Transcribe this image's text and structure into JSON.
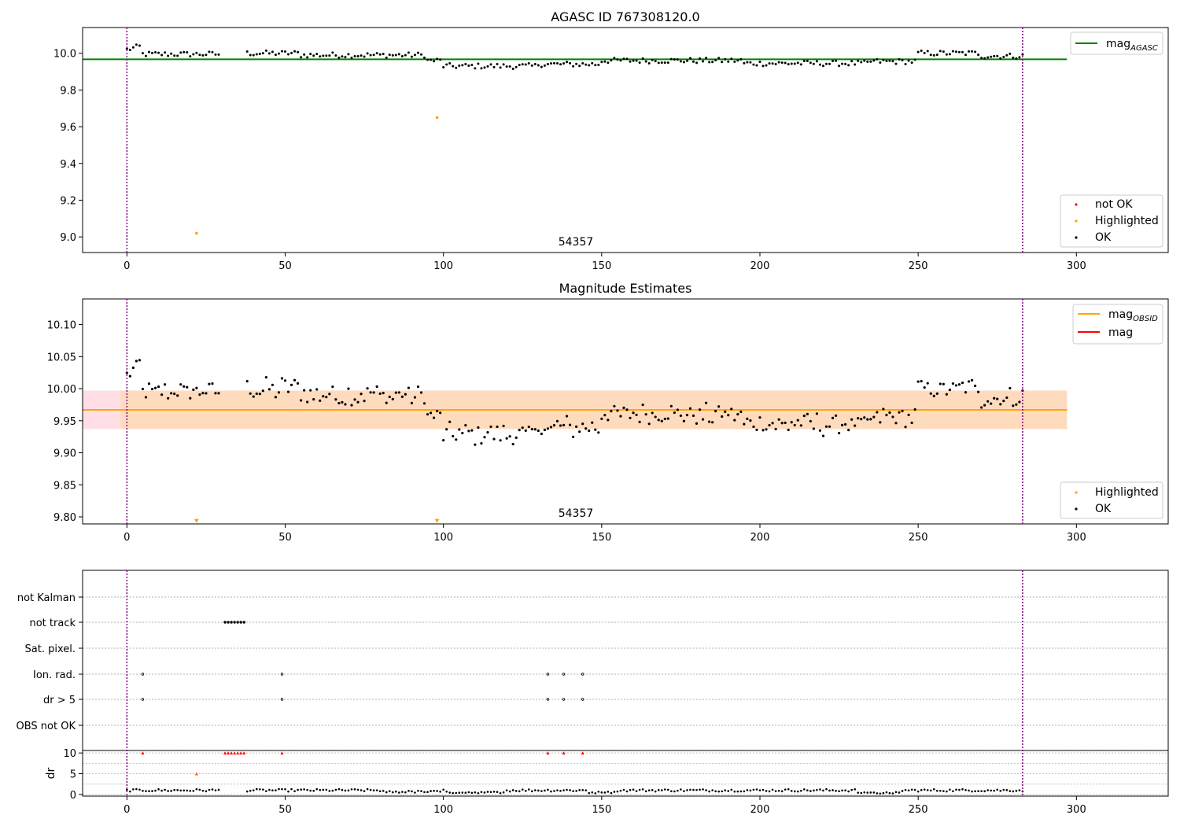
{
  "chart_data": [
    {
      "type": "scatter",
      "title": "AGASC ID 767308120.0",
      "xlim": [
        -14,
        329
      ],
      "ylim": [
        8.915,
        10.14
      ],
      "yticks": [
        "9.0",
        "9.2",
        "9.4",
        "9.6",
        "9.8",
        "10.0"
      ],
      "xticks": [
        "0",
        "50",
        "100",
        "150",
        "200",
        "250",
        "300"
      ],
      "annotation": "54357",
      "reference_lines": [
        {
          "name": "mag_AGASC",
          "value": 9.967,
          "x_range": [
            -14,
            297
          ],
          "color": "#008000"
        }
      ],
      "vertical_lines": [
        0,
        283
      ],
      "series": [
        {
          "name": "not OK",
          "color": "#ff0000",
          "x": [],
          "y": []
        },
        {
          "name": "Highlighted",
          "color": "#ffa500",
          "x": [
            22,
            98
          ],
          "y": [
            9.02,
            9.65
          ]
        },
        {
          "name": "OK",
          "color": "#000000",
          "note": "~270 points, 9.90-10.04"
        }
      ],
      "legend": [
        {
          "label": "mag",
          "sub": "AGASC",
          "kind": "line",
          "color": "#008000",
          "position": "top-right"
        },
        {
          "label": "not OK",
          "kind": "dot",
          "color": "#ff0000"
        },
        {
          "label": "Highlighted",
          "kind": "dot",
          "color": "#ffa500"
        },
        {
          "label": "OK",
          "kind": "dot",
          "color": "#000000"
        }
      ]
    },
    {
      "type": "scatter",
      "title": "Magnitude Estimates",
      "xlim": [
        -14,
        329
      ],
      "ylim": [
        9.789,
        10.14
      ],
      "yticks": [
        "9.80",
        "9.85",
        "9.90",
        "9.95",
        "10.00",
        "10.05",
        "10.10"
      ],
      "xticks": [
        "0",
        "50",
        "100",
        "150",
        "200",
        "250",
        "300"
      ],
      "annotation": "54357",
      "reference_lines": [
        {
          "name": "mag",
          "value": 9.967,
          "x_range": [
            -14,
            297
          ],
          "color": "#ff0000"
        },
        {
          "name": "mag_OBSID",
          "value": 9.967,
          "x_range": [
            -14,
            297
          ],
          "color": "#ffa500"
        }
      ],
      "bands": [
        {
          "color": "#ffc0cb",
          "y": [
            9.937,
            9.997
          ],
          "x_range": [
            -14,
            297
          ]
        },
        {
          "color": "#ffdab9",
          "y": [
            9.937,
            9.997
          ],
          "x_range": [
            -14,
            297
          ]
        }
      ],
      "vertical_lines": [
        0,
        283
      ],
      "series": [
        {
          "name": "Highlighted",
          "color": "#ffa500",
          "marker": "triangle-down",
          "x": [
            22,
            98
          ],
          "y": [
            9.793,
            9.793
          ]
        },
        {
          "name": "OK",
          "color": "#000000",
          "note": "~270 points, 9.89-10.04"
        }
      ],
      "legend": [
        {
          "label": "mag",
          "sub": "OBSID",
          "kind": "line",
          "color": "#ffa500",
          "position": "top-right"
        },
        {
          "label": "mag",
          "sub": "",
          "kind": "line",
          "color": "#ff0000"
        },
        {
          "label": "Highlighted",
          "kind": "dot",
          "color": "#ffa500"
        },
        {
          "label": "OK",
          "kind": "dot",
          "color": "#000000"
        }
      ]
    },
    {
      "type": "scatter",
      "title": "",
      "xlim": [
        -14,
        329
      ],
      "categories": [
        "not Kalman",
        "not track",
        "Sat. pixel.",
        "Ion. rad.",
        "dr > 5",
        "OBS not OK"
      ],
      "flags": {
        "not Kalman": [],
        "not track": [
          31,
          32,
          33,
          34,
          35,
          36,
          37
        ],
        "Sat. pixel.": [],
        "Ion. rad.": [
          5,
          49,
          133,
          138,
          144
        ],
        "dr > 5": [
          5,
          49,
          133,
          138,
          144
        ],
        "OBS not OK": []
      },
      "vertical_lines": [
        0,
        283
      ]
    },
    {
      "type": "scatter",
      "title": "",
      "ylabel": "dr",
      "xlim": [
        -14,
        329
      ],
      "ylim": [
        -0.4,
        10.6
      ],
      "yticks": [
        "0",
        "5",
        "10"
      ],
      "xticks": [
        "0",
        "50",
        "100",
        "150",
        "200",
        "250",
        "300"
      ],
      "clipped_x": [
        5,
        31,
        32,
        33,
        34,
        35,
        36,
        37,
        49,
        133,
        138,
        144
      ],
      "clipped_value": 10,
      "highlighted": [
        {
          "x": 22,
          "y": 5
        }
      ],
      "vertical_lines": [
        0,
        283
      ]
    }
  ]
}
